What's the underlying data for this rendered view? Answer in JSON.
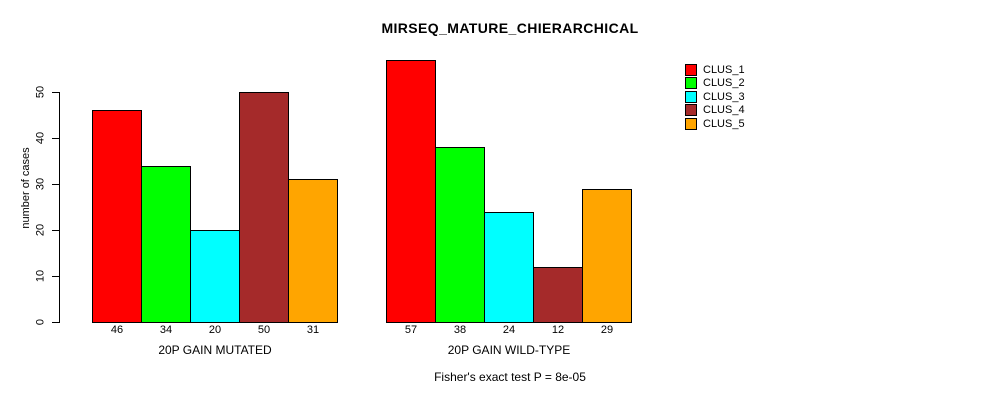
{
  "chart_data": {
    "type": "bar",
    "title": "MIRSEQ_MATURE_CHIERARCHICAL",
    "subtitle": "Fisher's exact test P = 8e-05",
    "xlabel": "",
    "ylabel": "number of cases",
    "ylim": [
      0,
      57
    ],
    "yticks": [
      0,
      10,
      20,
      30,
      40,
      50
    ],
    "grid": false,
    "bar_value_labels_shown": true,
    "legend_position": "top-right",
    "categories": [
      "20P GAIN MUTATED",
      "20P GAIN WILD-TYPE"
    ],
    "series": [
      {
        "name": "CLUS_1",
        "color": "#FF0000",
        "values": [
          46,
          57
        ]
      },
      {
        "name": "CLUS_2",
        "color": "#00FF00",
        "values": [
          34,
          38
        ]
      },
      {
        "name": "CLUS_3",
        "color": "#00FFFF",
        "values": [
          20,
          24
        ]
      },
      {
        "name": "CLUS_4",
        "color": "#A52A2A",
        "values": [
          50,
          12
        ]
      },
      {
        "name": "CLUS_5",
        "color": "#FFA500",
        "values": [
          31,
          29
        ]
      }
    ]
  },
  "colors": {
    "background": "#FFFFFF",
    "axis": "#000000",
    "bar_border": "#000000",
    "text": "#000000"
  }
}
